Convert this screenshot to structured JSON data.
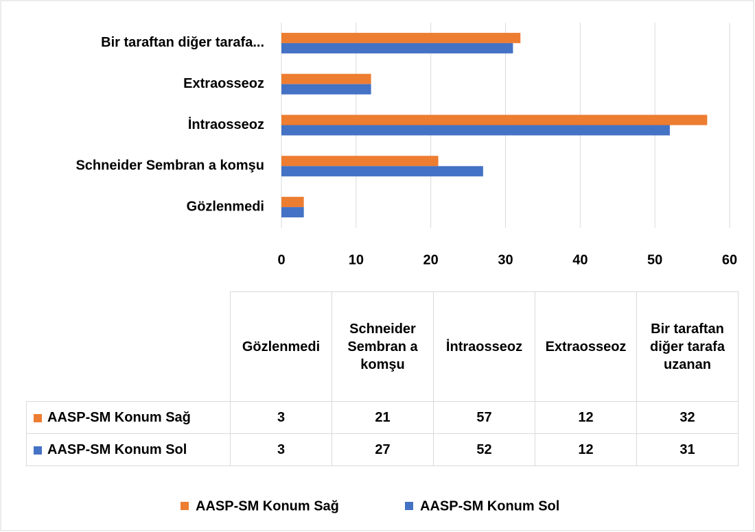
{
  "chart_data": {
    "type": "barh",
    "categories": [
      "Gözlenmedi",
      "Schneider Sembran a komşu",
      "İntraosseoz",
      "Extraosseoz",
      "Bir taraftan diğer tarafa uzanan"
    ],
    "category_axis_labels": [
      "Gözlenmedi",
      "Schneider Sembran a komşu",
      "İntraosseoz",
      "Extraosseoz",
      "Bir taraftan diğer tarafa..."
    ],
    "series": [
      {
        "name": "AASP-SM Konum Sağ",
        "color": "#ed7d31",
        "values": [
          3,
          21,
          57,
          12,
          32
        ]
      },
      {
        "name": "AASP-SM Konum Sol",
        "color": "#4472c4",
        "values": [
          3,
          27,
          52,
          12,
          31
        ]
      }
    ],
    "xlim": [
      0,
      60
    ],
    "xticks": [
      0,
      10,
      20,
      30,
      40,
      50,
      60
    ],
    "grid": true,
    "legend": "bottom",
    "data_table": true
  }
}
